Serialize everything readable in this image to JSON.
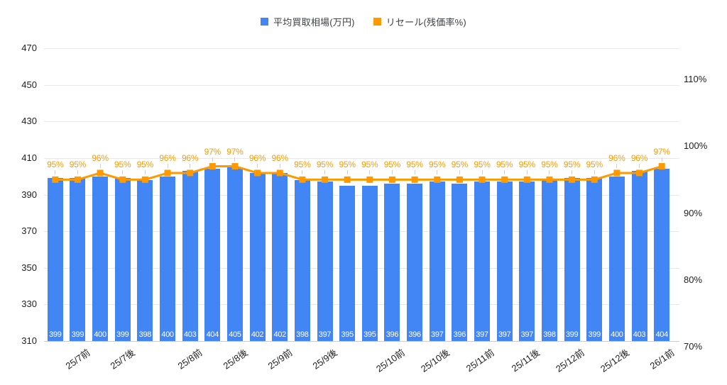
{
  "legend": {
    "items": [
      {
        "label": "平均買取相場(万円)",
        "color": "#4285f4"
      },
      {
        "label": "リセール(残価率%)",
        "color": "#ff9900"
      }
    ],
    "position": "top"
  },
  "chart_data": {
    "type": "combo (bar + line)",
    "grid": true,
    "background": "#ffffff",
    "gridline_color": "#e8e8e8",
    "series": [
      {
        "name": "平均買取相場(万円)",
        "type": "bar",
        "axis": "left",
        "color": "#4285f4",
        "value_label_color": "#ffffff",
        "values": [
          399,
          399,
          400,
          399,
          398,
          400,
          403,
          404,
          405,
          402,
          402,
          398,
          397,
          395,
          395,
          396,
          396,
          397,
          396,
          397,
          397,
          397,
          398,
          399,
          399,
          400,
          403,
          404
        ]
      },
      {
        "name": "リセール(残価率%)",
        "type": "line",
        "axis": "right",
        "color": "#ff9900",
        "marker": "square",
        "annotation_suffix": "%",
        "values": [
          95,
          95,
          96,
          95,
          95,
          96,
          96,
          97,
          97,
          96,
          96,
          95,
          95,
          95,
          95,
          95,
          95,
          95,
          95,
          95,
          95,
          95,
          95,
          95,
          95,
          96,
          96,
          97
        ]
      }
    ],
    "x_axis": {
      "visible_labels": [
        "25/7前",
        "25/7後",
        "25/8前",
        "25/8後",
        "25/9前",
        "25/9後",
        "25/10前",
        "25/10後",
        "25/11前",
        "25/11後",
        "25/12前",
        "25/12後",
        "26/1前"
      ],
      "label_bar_positions": [
        2,
        4,
        7,
        9,
        11,
        13,
        16,
        18,
        20,
        22,
        24,
        26,
        28
      ],
      "label_rotation_deg": -35
    },
    "left_axis": {
      "min": 310,
      "max": 470,
      "ticks": [
        310,
        330,
        350,
        370,
        390,
        410,
        430,
        450,
        470
      ]
    },
    "right_axis": {
      "min": 70,
      "max": 110,
      "ticks": [
        70,
        80,
        90,
        100,
        110
      ],
      "suffix": "%"
    }
  }
}
